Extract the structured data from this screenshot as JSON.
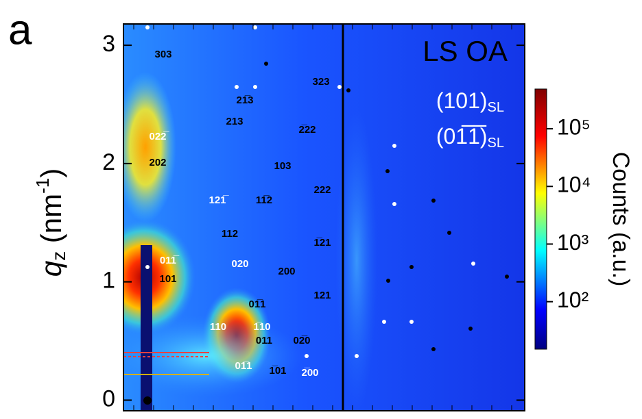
{
  "chart_data": {
    "type": "heatmap",
    "panel_label": "a",
    "title": "LS OA",
    "orientation_labels": [
      {
        "text": "(101)",
        "sub": "SL"
      },
      {
        "text": "(01̅1̅)",
        "sub": "SL"
      }
    ],
    "y_label": [
      "q",
      "z",
      " (nm",
      "-1",
      ")"
    ],
    "ylim": [
      -0.09,
      3.18
    ],
    "yticks": [
      0,
      1,
      2,
      3
    ],
    "colorbar": {
      "label": "Counts (a.u.)",
      "log": true,
      "lim": [
        15,
        490000
      ],
      "ticks": [
        {
          "value": 100,
          "label": "10²"
        },
        {
          "value": 1000,
          "label": "10³"
        },
        {
          "value": 10000,
          "label": "10⁴"
        },
        {
          "value": 100000,
          "label": "10⁵"
        }
      ]
    },
    "annotations": [
      "303",
      "022̅",
      "202",
      "011̅",
      "101",
      "323",
      "21̅3",
      "213",
      "2̅22",
      "103",
      "121̅",
      "11̅2",
      "222",
      "112",
      "1̅21",
      "020",
      "200",
      "01̅1",
      "121",
      "110",
      "1̅10",
      "011",
      "02̅0",
      "01̅1",
      "1̅01",
      "2̅00"
    ]
  }
}
